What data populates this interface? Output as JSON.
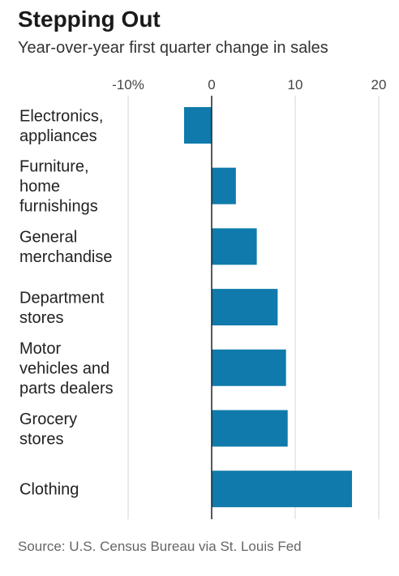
{
  "header": {
    "title": "Stepping Out",
    "subtitle": "Year-over-year first quarter change in sales"
  },
  "footer": {
    "source": "Source: U.S. Census Bureau via St. Louis Fed"
  },
  "colors": {
    "bar": "#0f7aab",
    "grid": "#d6d6d6",
    "axis": "#222222"
  },
  "chart_data": {
    "type": "bar",
    "orientation": "horizontal",
    "title": "Stepping Out",
    "subtitle": "Year-over-year first quarter change in sales",
    "xlabel": "",
    "ylabel": "",
    "xlim": [
      -10,
      20
    ],
    "x_ticks": [
      -10,
      0,
      10,
      20
    ],
    "x_tick_labels": [
      "-10%",
      "0",
      "10",
      "20"
    ],
    "grid": true,
    "categories": [
      [
        "Electronics,",
        "appliances"
      ],
      [
        "Furniture,",
        "home",
        "furnishings"
      ],
      [
        "General",
        "merchandise"
      ],
      [
        "Department",
        "stores"
      ],
      [
        "Motor",
        "vehicles and",
        "parts dealers"
      ],
      [
        "Grocery",
        "stores"
      ],
      [
        "Clothing"
      ]
    ],
    "values": [
      -3.3,
      2.9,
      5.4,
      7.9,
      8.9,
      9.1,
      16.8
    ]
  }
}
